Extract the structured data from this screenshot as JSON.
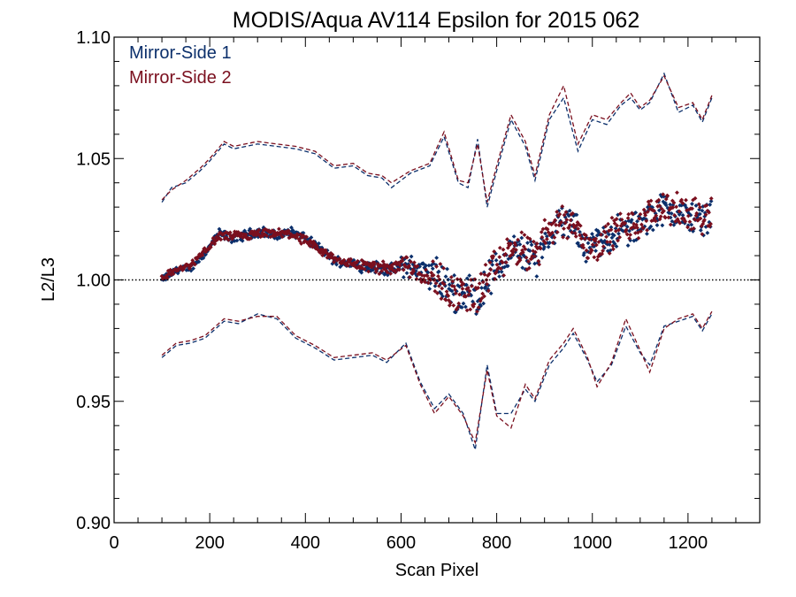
{
  "chart_data": {
    "type": "scatter",
    "title": "MODIS/Aqua AV114 Epsilon for 2015 062",
    "xlabel": "Scan Pixel",
    "ylabel": "L2/L3",
    "xlim": [
      0,
      1350
    ],
    "ylim": [
      0.9,
      1.1
    ],
    "xticks": [
      0,
      200,
      400,
      600,
      800,
      1000,
      1200
    ],
    "xtick_labels": [
      "0",
      "200",
      "400",
      "600",
      "800",
      "1000",
      "1200"
    ],
    "yticks": [
      0.9,
      0.95,
      1.0,
      1.05,
      1.1
    ],
    "ytick_labels": [
      "0.90",
      "0.95",
      "1.00",
      "1.05",
      "1.10"
    ],
    "x_minor_step": 50,
    "y_minor_step": 0.01,
    "reference_line": {
      "y": 1.0,
      "style": "dotted"
    },
    "legend_position": "top-left",
    "grid": false,
    "series": [
      {
        "name": "Mirror-Side 1",
        "color": "#0b2f6b",
        "center": [
          [
            100,
            1.0
          ],
          [
            130,
            1.004
          ],
          [
            160,
            1.005
          ],
          [
            190,
            1.011
          ],
          [
            220,
            1.019
          ],
          [
            250,
            1.017
          ],
          [
            280,
            1.019
          ],
          [
            310,
            1.02
          ],
          [
            340,
            1.018
          ],
          [
            370,
            1.02
          ],
          [
            400,
            1.017
          ],
          [
            430,
            1.013
          ],
          [
            460,
            1.008
          ],
          [
            490,
            1.007
          ],
          [
            520,
            1.006
          ],
          [
            550,
            1.005
          ],
          [
            580,
            1.004
          ],
          [
            610,
            1.006
          ],
          [
            640,
            1.004
          ],
          [
            670,
            1.002
          ],
          [
            700,
            0.997
          ],
          [
            720,
            0.993
          ],
          [
            740,
            0.996
          ],
          [
            760,
            0.992
          ],
          [
            780,
            1.0
          ],
          [
            800,
            1.004
          ],
          [
            830,
            1.012
          ],
          [
            860,
            1.01
          ],
          [
            880,
            1.009
          ],
          [
            900,
            1.016
          ],
          [
            930,
            1.024
          ],
          [
            960,
            1.022
          ],
          [
            990,
            1.013
          ],
          [
            1020,
            1.016
          ],
          [
            1050,
            1.02
          ],
          [
            1080,
            1.021
          ],
          [
            1110,
            1.023
          ],
          [
            1140,
            1.03
          ],
          [
            1170,
            1.028
          ],
          [
            1200,
            1.026
          ],
          [
            1230,
            1.025
          ],
          [
            1250,
            1.028
          ]
        ],
        "upper": [
          [
            100,
            1.032
          ],
          [
            120,
            1.038
          ],
          [
            150,
            1.04
          ],
          [
            180,
            1.045
          ],
          [
            200,
            1.049
          ],
          [
            230,
            1.056
          ],
          [
            250,
            1.054
          ],
          [
            300,
            1.056
          ],
          [
            340,
            1.055
          ],
          [
            380,
            1.054
          ],
          [
            420,
            1.052
          ],
          [
            460,
            1.046
          ],
          [
            500,
            1.047
          ],
          [
            530,
            1.043
          ],
          [
            560,
            1.042
          ],
          [
            580,
            1.038
          ],
          [
            620,
            1.044
          ],
          [
            660,
            1.047
          ],
          [
            690,
            1.059
          ],
          [
            720,
            1.04
          ],
          [
            740,
            1.038
          ],
          [
            760,
            1.058
          ],
          [
            780,
            1.03
          ],
          [
            800,
            1.045
          ],
          [
            830,
            1.066
          ],
          [
            860,
            1.055
          ],
          [
            880,
            1.041
          ],
          [
            910,
            1.066
          ],
          [
            940,
            1.075
          ],
          [
            970,
            1.053
          ],
          [
            1000,
            1.066
          ],
          [
            1030,
            1.064
          ],
          [
            1060,
            1.072
          ],
          [
            1080,
            1.075
          ],
          [
            1100,
            1.07
          ],
          [
            1120,
            1.073
          ],
          [
            1150,
            1.085
          ],
          [
            1180,
            1.069
          ],
          [
            1210,
            1.072
          ],
          [
            1230,
            1.065
          ],
          [
            1250,
            1.075
          ]
        ],
        "lower": [
          [
            100,
            0.968
          ],
          [
            130,
            0.973
          ],
          [
            160,
            0.974
          ],
          [
            190,
            0.976
          ],
          [
            230,
            0.983
          ],
          [
            260,
            0.982
          ],
          [
            300,
            0.986
          ],
          [
            340,
            0.984
          ],
          [
            380,
            0.976
          ],
          [
            420,
            0.972
          ],
          [
            460,
            0.967
          ],
          [
            500,
            0.968
          ],
          [
            540,
            0.969
          ],
          [
            570,
            0.966
          ],
          [
            610,
            0.974
          ],
          [
            640,
            0.958
          ],
          [
            670,
            0.947
          ],
          [
            700,
            0.953
          ],
          [
            730,
            0.945
          ],
          [
            755,
            0.93
          ],
          [
            780,
            0.965
          ],
          [
            800,
            0.945
          ],
          [
            830,
            0.945
          ],
          [
            860,
            0.955
          ],
          [
            880,
            0.95
          ],
          [
            910,
            0.965
          ],
          [
            940,
            0.972
          ],
          [
            960,
            0.978
          ],
          [
            990,
            0.967
          ],
          [
            1010,
            0.958
          ],
          [
            1040,
            0.965
          ],
          [
            1070,
            0.981
          ],
          [
            1100,
            0.97
          ],
          [
            1120,
            0.965
          ],
          [
            1150,
            0.981
          ],
          [
            1180,
            0.983
          ],
          [
            1210,
            0.985
          ],
          [
            1230,
            0.979
          ],
          [
            1250,
            0.986
          ]
        ]
      },
      {
        "name": "Mirror-Side 2",
        "color": "#7a0f1e",
        "center": [
          [
            100,
            1.001
          ],
          [
            130,
            1.004
          ],
          [
            160,
            1.006
          ],
          [
            190,
            1.012
          ],
          [
            220,
            1.018
          ],
          [
            250,
            1.018
          ],
          [
            280,
            1.018
          ],
          [
            310,
            1.019
          ],
          [
            340,
            1.019
          ],
          [
            370,
            1.019
          ],
          [
            400,
            1.016
          ],
          [
            430,
            1.012
          ],
          [
            460,
            1.009
          ],
          [
            490,
            1.007
          ],
          [
            520,
            1.006
          ],
          [
            550,
            1.005
          ],
          [
            580,
            1.005
          ],
          [
            610,
            1.007
          ],
          [
            640,
            1.003
          ],
          [
            670,
            1.001
          ],
          [
            700,
            0.996
          ],
          [
            720,
            0.994
          ],
          [
            740,
            0.995
          ],
          [
            760,
            0.993
          ],
          [
            780,
            1.001
          ],
          [
            800,
            1.005
          ],
          [
            830,
            1.013
          ],
          [
            860,
            1.011
          ],
          [
            880,
            1.01
          ],
          [
            900,
            1.018
          ],
          [
            930,
            1.025
          ],
          [
            960,
            1.023
          ],
          [
            990,
            1.014
          ],
          [
            1020,
            1.015
          ],
          [
            1050,
            1.021
          ],
          [
            1080,
            1.022
          ],
          [
            1110,
            1.024
          ],
          [
            1140,
            1.031
          ],
          [
            1170,
            1.029
          ],
          [
            1200,
            1.027
          ],
          [
            1230,
            1.026
          ],
          [
            1250,
            1.029
          ]
        ],
        "upper": [
          [
            100,
            1.033
          ],
          [
            120,
            1.037
          ],
          [
            150,
            1.041
          ],
          [
            180,
            1.046
          ],
          [
            200,
            1.05
          ],
          [
            230,
            1.057
          ],
          [
            250,
            1.055
          ],
          [
            300,
            1.057
          ],
          [
            340,
            1.056
          ],
          [
            380,
            1.055
          ],
          [
            420,
            1.053
          ],
          [
            460,
            1.047
          ],
          [
            500,
            1.048
          ],
          [
            530,
            1.044
          ],
          [
            560,
            1.043
          ],
          [
            580,
            1.04
          ],
          [
            620,
            1.045
          ],
          [
            660,
            1.048
          ],
          [
            690,
            1.061
          ],
          [
            720,
            1.041
          ],
          [
            740,
            1.04
          ],
          [
            760,
            1.056
          ],
          [
            780,
            1.032
          ],
          [
            800,
            1.047
          ],
          [
            830,
            1.068
          ],
          [
            860,
            1.057
          ],
          [
            880,
            1.043
          ],
          [
            910,
            1.068
          ],
          [
            940,
            1.08
          ],
          [
            970,
            1.056
          ],
          [
            1000,
            1.068
          ],
          [
            1030,
            1.066
          ],
          [
            1060,
            1.073
          ],
          [
            1080,
            1.077
          ],
          [
            1100,
            1.071
          ],
          [
            1120,
            1.074
          ],
          [
            1150,
            1.084
          ],
          [
            1180,
            1.071
          ],
          [
            1210,
            1.073
          ],
          [
            1230,
            1.066
          ],
          [
            1250,
            1.076
          ]
        ],
        "lower": [
          [
            100,
            0.969
          ],
          [
            130,
            0.974
          ],
          [
            160,
            0.975
          ],
          [
            190,
            0.977
          ],
          [
            230,
            0.984
          ],
          [
            260,
            0.983
          ],
          [
            300,
            0.985
          ],
          [
            340,
            0.985
          ],
          [
            380,
            0.977
          ],
          [
            420,
            0.973
          ],
          [
            460,
            0.968
          ],
          [
            500,
            0.969
          ],
          [
            540,
            0.97
          ],
          [
            570,
            0.967
          ],
          [
            610,
            0.973
          ],
          [
            640,
            0.957
          ],
          [
            670,
            0.945
          ],
          [
            700,
            0.952
          ],
          [
            730,
            0.944
          ],
          [
            755,
            0.933
          ],
          [
            780,
            0.963
          ],
          [
            800,
            0.944
          ],
          [
            830,
            0.939
          ],
          [
            860,
            0.957
          ],
          [
            880,
            0.951
          ],
          [
            910,
            0.967
          ],
          [
            940,
            0.974
          ],
          [
            960,
            0.98
          ],
          [
            990,
            0.968
          ],
          [
            1010,
            0.956
          ],
          [
            1040,
            0.966
          ],
          [
            1070,
            0.984
          ],
          [
            1100,
            0.971
          ],
          [
            1120,
            0.962
          ],
          [
            1150,
            0.98
          ],
          [
            1180,
            0.984
          ],
          [
            1210,
            0.986
          ],
          [
            1230,
            0.98
          ],
          [
            1250,
            0.987
          ]
        ]
      }
    ]
  }
}
